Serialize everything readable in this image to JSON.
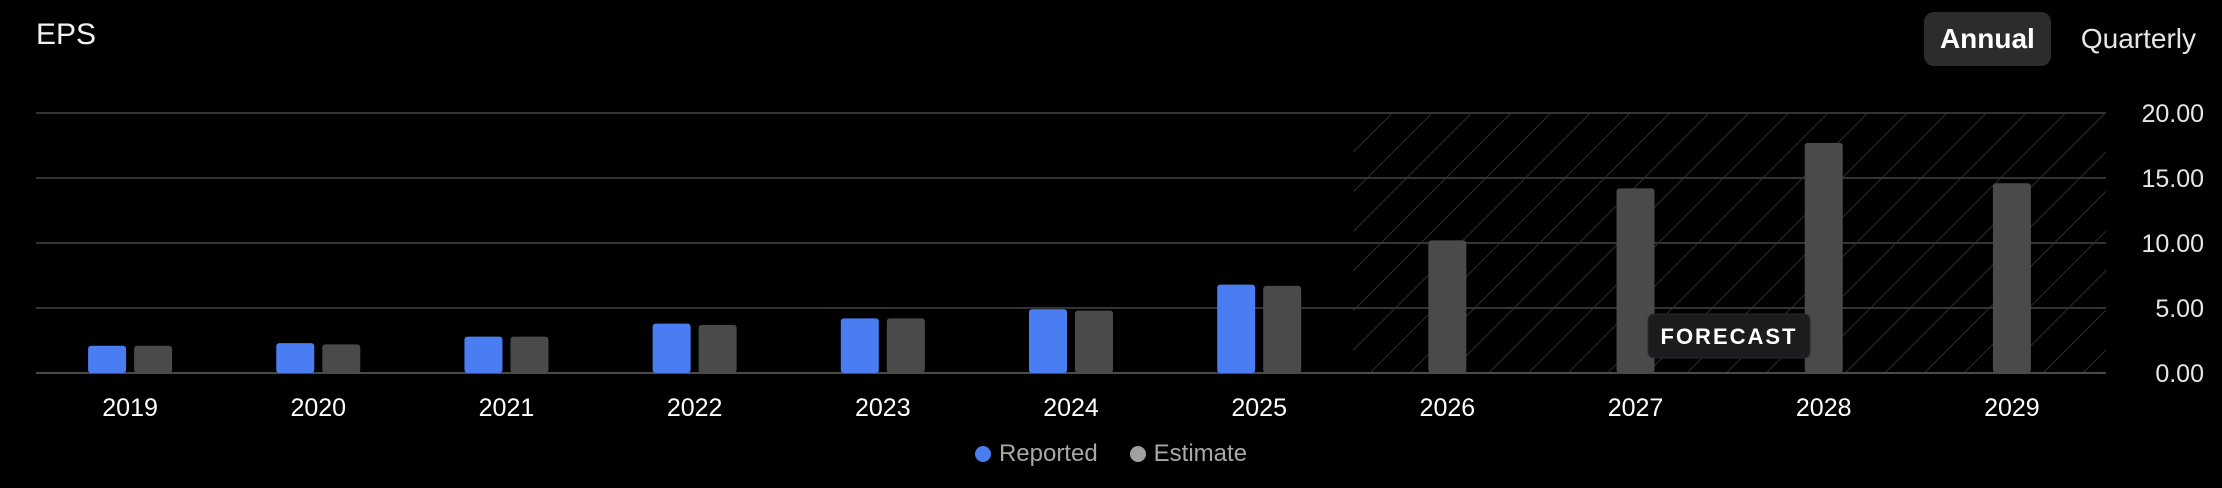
{
  "title": "EPS",
  "period_toggle": {
    "options": [
      "Annual",
      "Quarterly"
    ],
    "selected": "Annual"
  },
  "forecast_label": "FORECAST",
  "colors": {
    "reported": "#4a7df2",
    "estimate": "#4a4a4a",
    "gridline": "#333333",
    "text": "#ffffff"
  },
  "chart_data": {
    "type": "bar",
    "title": "EPS",
    "categories": [
      "2019",
      "2020",
      "2021",
      "2022",
      "2023",
      "2024",
      "2025",
      "2026",
      "2027",
      "2028",
      "2029"
    ],
    "series": [
      {
        "name": "Reported",
        "color": "#4a7df2",
        "values": [
          2.1,
          2.3,
          2.8,
          3.8,
          4.2,
          4.9,
          6.8,
          null,
          null,
          null,
          null
        ]
      },
      {
        "name": "Estimate",
        "color": "#4a4a4a",
        "values": [
          2.1,
          2.2,
          2.8,
          3.7,
          4.2,
          4.8,
          6.7,
          10.2,
          14.2,
          17.7,
          14.6
        ]
      }
    ],
    "ylim": [
      0,
      20
    ],
    "yticks": [
      "0.00",
      "5.00",
      "10.00",
      "15.00",
      "20.00"
    ],
    "y_axis_side": "right",
    "forecast_start": "2026",
    "grid": true,
    "legend_position": "bottom-center"
  }
}
